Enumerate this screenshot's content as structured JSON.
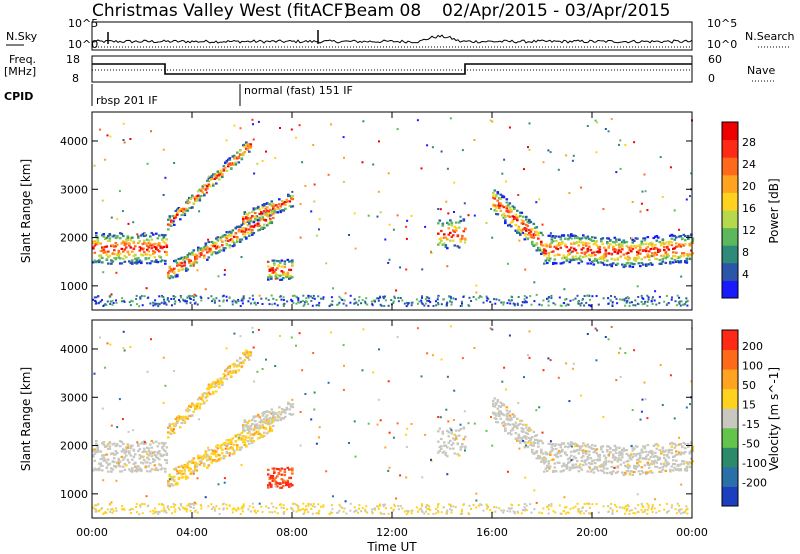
{
  "header": {
    "title_left": "Christmas Valley West (fitACF)",
    "title_beam": "Beam 08",
    "title_dates": "02/Apr/2015 - 03/Apr/2015"
  },
  "strip_labels": {
    "nsky": "N.Sky",
    "freq": "Freq.",
    "mhz": "[MHz]",
    "cpid": "CPID",
    "nsearch": "N.Search",
    "nave": "Nave"
  },
  "strip_ticks": {
    "noise_top": "10^5",
    "noise_bottom": "10^0",
    "freq_top": "18",
    "freq_bottom": "8",
    "nave_top": "60",
    "nave_bottom": "0"
  },
  "cpid_labels": [
    "rbsp 201 IF",
    "normal (fast) 151 IF"
  ],
  "chart_data": [
    {
      "type": "heatmap",
      "panel": "power",
      "ylabel": "Slant Range [km]",
      "xlabel": "Time UT",
      "x_ticks": [
        "00:00",
        "04:00",
        "08:00",
        "12:00",
        "16:00",
        "20:00",
        "00:00"
      ],
      "y_ticks": [
        1000,
        2000,
        3000,
        4000
      ],
      "ylim": [
        500,
        4600
      ],
      "xlim_hours": [
        0,
        24
      ],
      "colorbar": {
        "label": "Power [dB]",
        "ticks": [
          4,
          8,
          12,
          16,
          20,
          24,
          28
        ],
        "colors": [
          "#1a1aff",
          "#2b55a8",
          "#2f8a7a",
          "#5cb85c",
          "#b5d94a",
          "#ffd21f",
          "#ffa320",
          "#ff6a1a",
          "#ff2a15",
          "#ee0000"
        ]
      }
    },
    {
      "type": "heatmap",
      "panel": "velocity",
      "ylabel": "Slant Range [km]",
      "xlabel": "Time UT",
      "x_ticks": [
        "00:00",
        "04:00",
        "08:00",
        "12:00",
        "16:00",
        "20:00",
        "00:00"
      ],
      "y_ticks": [
        1000,
        2000,
        3000,
        4000
      ],
      "ylim": [
        500,
        4600
      ],
      "xlim_hours": [
        0,
        24
      ],
      "colorbar": {
        "label": "Velocity [m s^-1]",
        "ticks": [
          200,
          100,
          50,
          15,
          -15,
          -50,
          -100,
          -200
        ],
        "colors": [
          "#1a3fbf",
          "#2a6fa8",
          "#2a8a6a",
          "#63c34a",
          "#c8c8c0",
          "#ffd21f",
          "#ffa320",
          "#ff6a1a",
          "#ff2a15"
        ]
      }
    }
  ],
  "time_axis_label": "Time UT"
}
